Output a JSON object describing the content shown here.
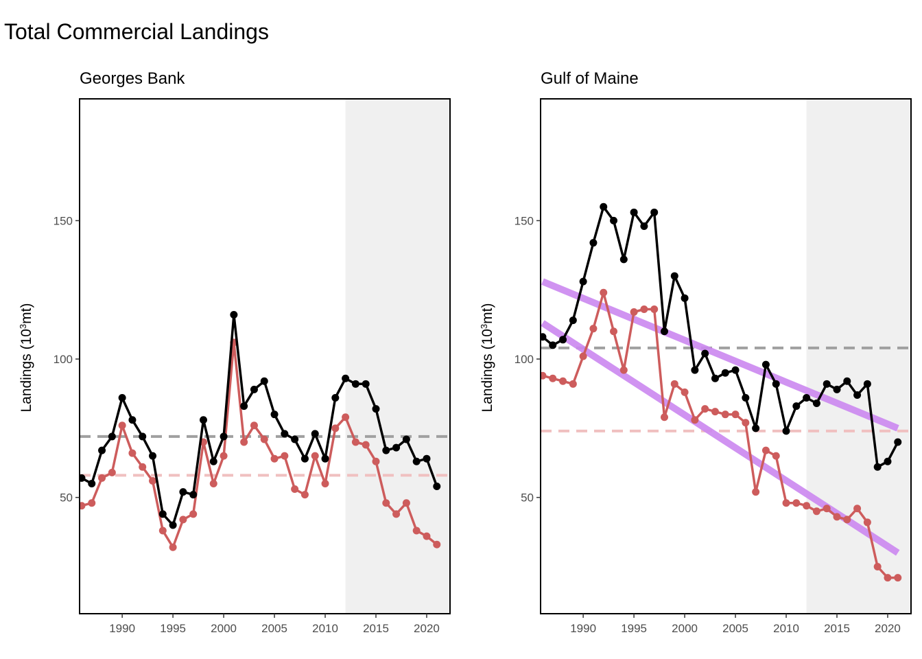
{
  "title": "Total Commercial Landings",
  "colors": {
    "total": "#000000",
    "managed": "#CD5C5C",
    "total_mean": "#A0A0A0",
    "managed_mean": "#F0C0C0",
    "trend": "#CC88F0",
    "shade": "#F0F0F0"
  },
  "chart_data": [
    {
      "type": "line",
      "subtitle": "Georges Bank",
      "ylabel_prefix": "Landings (10",
      "ylabel_sup": "3",
      "ylabel_suffix": "mt)",
      "xlim": [
        1985.8,
        2022.3
      ],
      "ylim": [
        8,
        194
      ],
      "xticks": [
        1990,
        1995,
        2000,
        2005,
        2010,
        2015,
        2020
      ],
      "yticks": [
        50,
        100,
        150
      ],
      "shade_range": [
        2012,
        2022.3
      ],
      "series": [
        {
          "key": "total",
          "x": [
            1986,
            1987,
            1988,
            1989,
            1990,
            1991,
            1992,
            1993,
            1994,
            1995,
            1996,
            1997,
            1998,
            1999,
            2000,
            2001,
            2002,
            2003,
            2004,
            2005,
            2006,
            2007,
            2008,
            2009,
            2010,
            2011,
            2012,
            2013,
            2014,
            2015,
            2016,
            2017,
            2018,
            2019,
            2020,
            2021
          ],
          "y": [
            57,
            55,
            67,
            72,
            86,
            78,
            72,
            65,
            44,
            40,
            52,
            51,
            78,
            63,
            72,
            116,
            83,
            89,
            92,
            80,
            73,
            71,
            64,
            73,
            64,
            86,
            93,
            91,
            91,
            82,
            67,
            68,
            71,
            63,
            64,
            54
          ],
          "mean": 72
        },
        {
          "key": "managed",
          "x": [
            1986,
            1987,
            1988,
            1989,
            1990,
            1991,
            1992,
            1993,
            1994,
            1995,
            1996,
            1997,
            1998,
            1999,
            2000,
            2001,
            2002,
            2003,
            2004,
            2005,
            2006,
            2007,
            2008,
            2009,
            2010,
            2011,
            2012,
            2013,
            2014,
            2015,
            2016,
            2017,
            2018,
            2019,
            2020,
            2021
          ],
          "y": [
            47,
            48,
            57,
            59,
            76,
            66,
            61,
            56,
            38,
            32,
            42,
            44,
            70,
            55,
            65,
            106,
            70,
            76,
            71,
            64,
            65,
            53,
            51,
            65,
            55,
            75,
            79,
            70,
            69,
            63,
            48,
            44,
            48,
            38,
            36,
            33
          ],
          "mean": 58
        }
      ],
      "trends": []
    },
    {
      "type": "line",
      "subtitle": "Gulf of Maine",
      "ylabel_prefix": "Landings (10",
      "ylabel_sup": "3",
      "ylabel_suffix": "mt)",
      "xlim": [
        1985.8,
        2022.3
      ],
      "ylim": [
        8,
        194
      ],
      "xticks": [
        1990,
        1995,
        2000,
        2005,
        2010,
        2015,
        2020
      ],
      "yticks": [
        50,
        100,
        150
      ],
      "shade_range": [
        2012,
        2022.3
      ],
      "series": [
        {
          "key": "total",
          "x": [
            1986,
            1987,
            1988,
            1989,
            1990,
            1991,
            1992,
            1993,
            1994,
            1995,
            1996,
            1997,
            1998,
            1999,
            2000,
            2001,
            2002,
            2003,
            2004,
            2005,
            2006,
            2007,
            2008,
            2009,
            2010,
            2011,
            2012,
            2013,
            2014,
            2015,
            2016,
            2017,
            2018,
            2019,
            2020,
            2021
          ],
          "y": [
            108,
            105,
            107,
            114,
            128,
            142,
            155,
            150,
            136,
            153,
            148,
            153,
            110,
            130,
            122,
            96,
            102,
            93,
            95,
            96,
            86,
            75,
            98,
            91,
            74,
            83,
            86,
            84,
            91,
            89,
            92,
            87,
            91,
            61,
            63,
            70
          ],
          "mean": 104
        },
        {
          "key": "managed",
          "x": [
            1986,
            1987,
            1988,
            1989,
            1990,
            1991,
            1992,
            1993,
            1994,
            1995,
            1996,
            1997,
            1998,
            1999,
            2000,
            2001,
            2002,
            2003,
            2004,
            2005,
            2006,
            2007,
            2008,
            2009,
            2010,
            2011,
            2012,
            2013,
            2014,
            2015,
            2016,
            2017,
            2018,
            2019,
            2020,
            2021
          ],
          "y": [
            94,
            93,
            92,
            91,
            101,
            111,
            124,
            110,
            96,
            117,
            118,
            118,
            79,
            91,
            88,
            78,
            82,
            81,
            80,
            80,
            77,
            52,
            67,
            65,
            48,
            48,
            47,
            45,
            46,
            43,
            42,
            46,
            41,
            25,
            21,
            21
          ],
          "mean": 74
        }
      ],
      "trends": [
        {
          "x": [
            1986,
            2021
          ],
          "y": [
            128,
            75
          ]
        },
        {
          "x": [
            1986,
            2021
          ],
          "y": [
            113,
            30
          ]
        }
      ]
    }
  ]
}
